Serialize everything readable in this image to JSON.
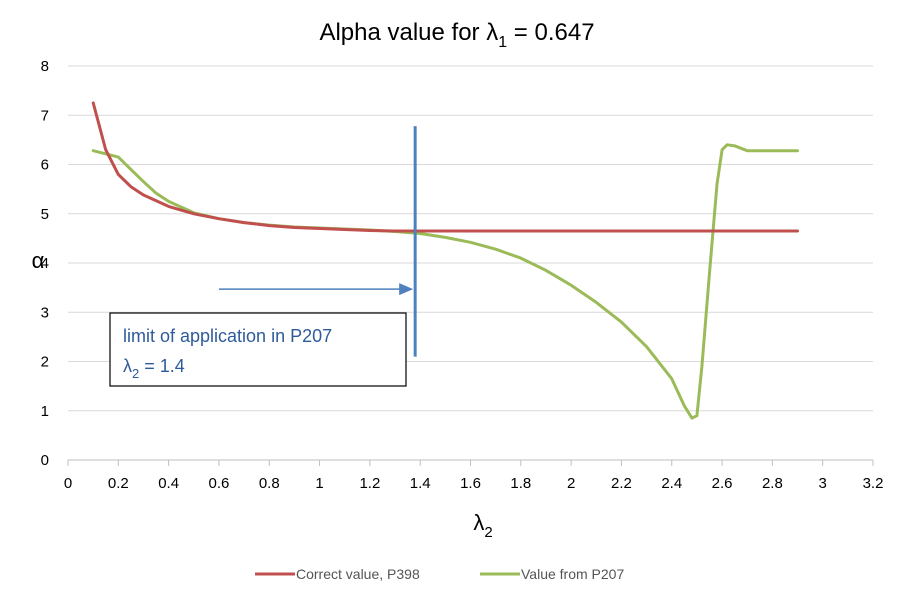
{
  "chart_data": {
    "type": "line",
    "title": {
      "main": "Alpha value for ",
      "symbol": "λ",
      "sub": "1",
      "rest": " = 0.647"
    },
    "xlabel": {
      "symbol": "λ",
      "sub": "2"
    },
    "ylabel": "α",
    "xlim": [
      0,
      3.2
    ],
    "ylim": [
      0,
      8
    ],
    "x_ticks": [
      "0",
      "0.2",
      "0.4",
      "0.6",
      "0.8",
      "1",
      "1.2",
      "1.4",
      "1.6",
      "1.8",
      "2",
      "2.2",
      "2.4",
      "2.6",
      "2.8",
      "3",
      "3.2"
    ],
    "y_ticks": [
      "0",
      "1",
      "2",
      "3",
      "4",
      "5",
      "6",
      "7",
      "8"
    ],
    "grid": "horizontal",
    "legend_position": "bottom",
    "series": [
      {
        "name": "Correct value, P398",
        "color": "#c0504d",
        "x": [
          0.1,
          0.15,
          0.2,
          0.25,
          0.3,
          0.4,
          0.5,
          0.6,
          0.7,
          0.8,
          0.9,
          1.0,
          1.1,
          1.2,
          1.3,
          1.4,
          1.5,
          1.6,
          1.8,
          2.0,
          2.2,
          2.4,
          2.6,
          2.8,
          2.9
        ],
        "y": [
          7.25,
          6.3,
          5.8,
          5.55,
          5.38,
          5.15,
          5.0,
          4.9,
          4.82,
          4.76,
          4.72,
          4.7,
          4.68,
          4.66,
          4.65,
          4.65,
          4.65,
          4.65,
          4.65,
          4.65,
          4.65,
          4.65,
          4.65,
          4.65,
          4.65
        ]
      },
      {
        "name": "Value from P207",
        "color": "#9bbb59",
        "x": [
          0.1,
          0.2,
          0.25,
          0.3,
          0.35,
          0.4,
          0.5,
          0.6,
          0.7,
          0.8,
          0.9,
          1.0,
          1.1,
          1.2,
          1.3,
          1.4,
          1.5,
          1.6,
          1.7,
          1.8,
          1.9,
          2.0,
          2.1,
          2.2,
          2.3,
          2.4,
          2.45,
          2.48,
          2.5,
          2.52,
          2.55,
          2.58,
          2.6,
          2.62,
          2.65,
          2.7,
          2.8,
          2.9
        ],
        "y": [
          6.28,
          6.15,
          5.9,
          5.65,
          5.42,
          5.25,
          5.02,
          4.9,
          4.82,
          4.77,
          4.73,
          4.71,
          4.69,
          4.67,
          4.64,
          4.6,
          4.52,
          4.42,
          4.28,
          4.1,
          3.85,
          3.55,
          3.2,
          2.8,
          2.3,
          1.65,
          1.1,
          0.85,
          0.9,
          1.9,
          3.8,
          5.6,
          6.3,
          6.4,
          6.38,
          6.28,
          6.28,
          6.28
        ]
      }
    ],
    "annotations": {
      "limit_line": {
        "x": 1.38,
        "y_from": 2.1,
        "y_to": 6.78,
        "color": "#4f81bd"
      },
      "arrow": {
        "x_from": 0.6,
        "x_to": 1.38,
        "y": 3.47,
        "color": "#4f81bd"
      },
      "box": {
        "line1": "limit of application in P207",
        "line2_symbol": "λ",
        "line2_sub": "2",
        "line2_rest": " = 1.4"
      }
    }
  }
}
